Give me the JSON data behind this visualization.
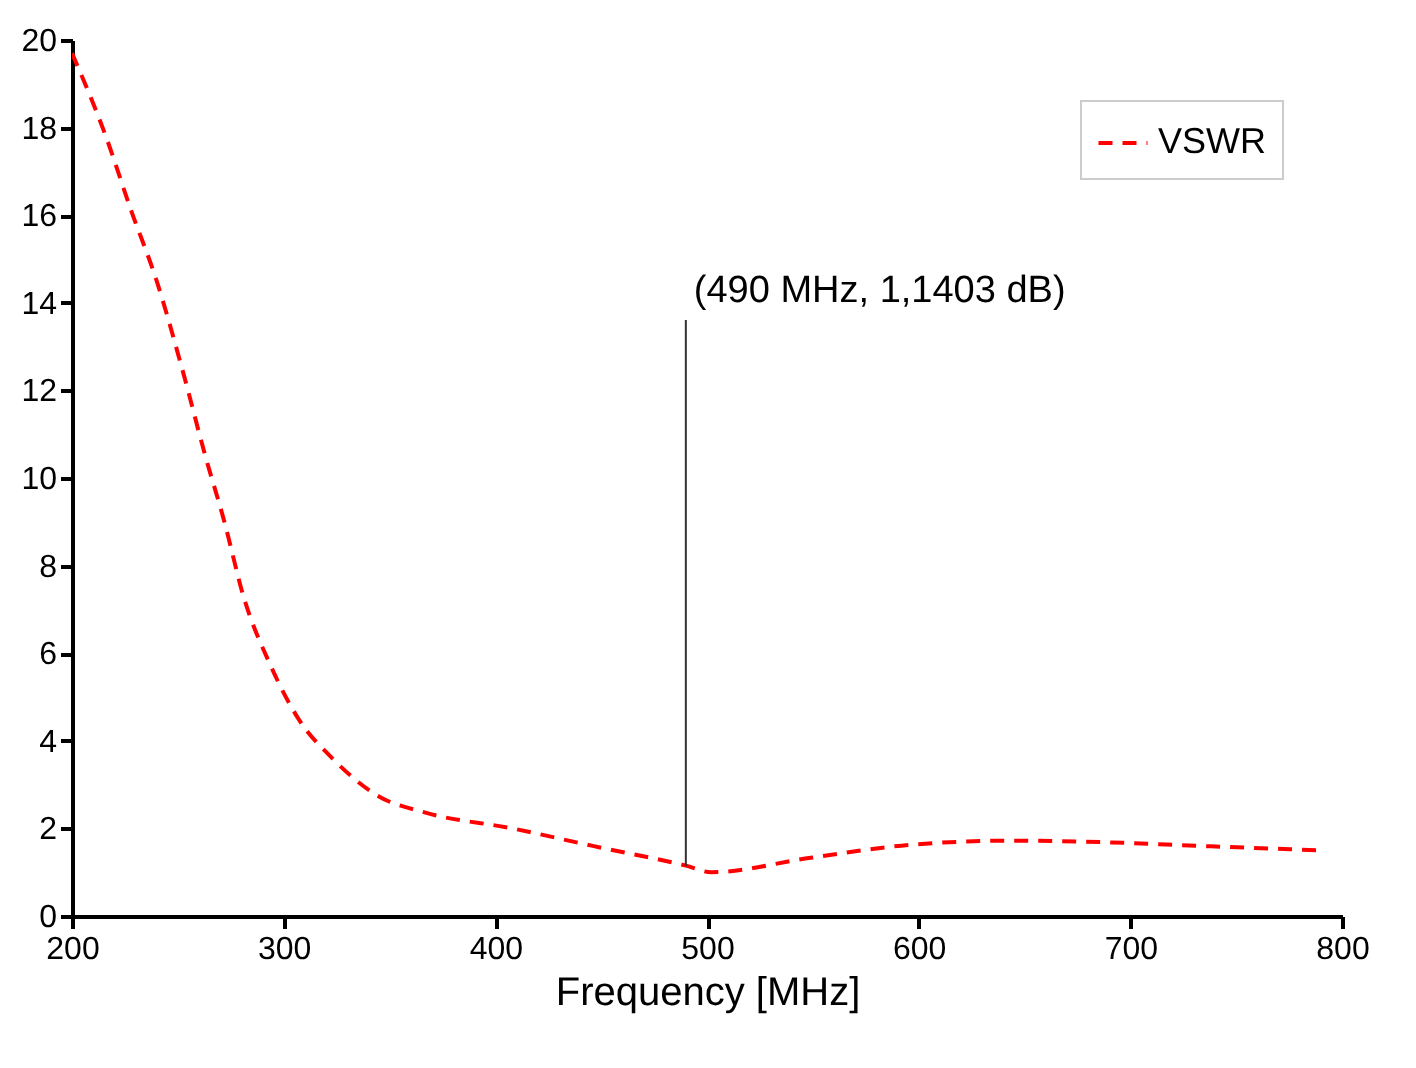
{
  "chart_data": {
    "type": "line",
    "xlabel": "Frequency [MHz]",
    "series": [
      {
        "name": "VSWR",
        "color": "#ff0000",
        "line_style": "dashed",
        "x": [
          200,
          216,
          228,
          240,
          252,
          263,
          272,
          281,
          294,
          307,
          323,
          345,
          367,
          408,
          446,
          490,
          502,
          549,
          597,
          644,
          691,
          738,
          790
        ],
        "values": [
          19.7,
          17.8,
          16.1,
          14.5,
          12.5,
          10.5,
          9.0,
          7.3,
          5.7,
          4.5,
          3.6,
          2.73,
          2.36,
          2.0,
          1.6,
          1.15,
          1.0,
          1.33,
          1.63,
          1.72,
          1.68,
          1.59,
          1.5
        ]
      }
    ],
    "xlim": [
      200,
      800
    ],
    "xticks": [
      200,
      300,
      400,
      500,
      600,
      700,
      800
    ],
    "ylim": [
      0,
      20
    ],
    "yticks": [
      0,
      2,
      4,
      6,
      8,
      10,
      12,
      14,
      16,
      18,
      20
    ],
    "grid": false,
    "legend": "top right",
    "marker": "none",
    "annotations": [
      {
        "text": "(490 MHz, 1,1403 dB)",
        "x": 490,
        "y": 1.1403
      }
    ]
  }
}
